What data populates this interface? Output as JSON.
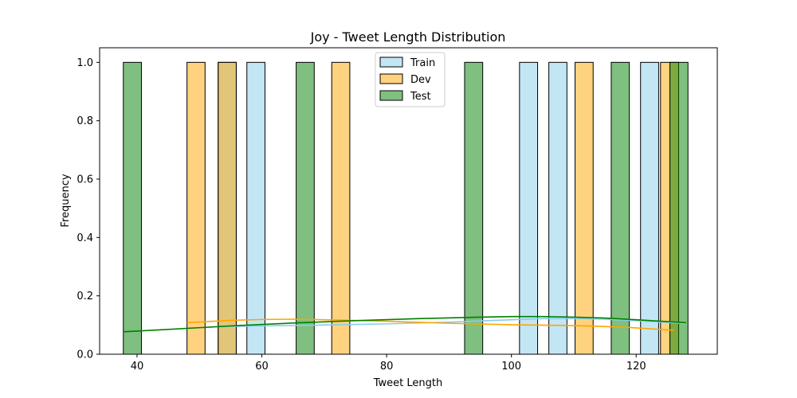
{
  "chart_data": {
    "type": "bar",
    "title": "Joy - Tweet Length Distribution",
    "xlabel": "Tweet Length",
    "ylabel": "Frequency",
    "xlim": [
      34,
      133
    ],
    "ylim": [
      0,
      1.05
    ],
    "xticks": [
      40,
      60,
      80,
      100,
      120
    ],
    "yticks": [
      0.0,
      0.2,
      0.4,
      0.6,
      0.8,
      1.0
    ],
    "ytick_labels": [
      "0.0",
      "0.2",
      "0.4",
      "0.6",
      "0.8",
      "1.0"
    ],
    "grid": false,
    "legend_position": "top-center",
    "bin_width": 2.9,
    "series": [
      {
        "name": "Train",
        "fill": "#87ceeb",
        "edge": "#000000",
        "kde_color": "#87ceeb",
        "bins": [
          53,
          57.6,
          101.3,
          106.0,
          120.7
        ],
        "values": [
          1,
          1,
          1,
          1,
          1
        ],
        "kde": {
          "x": [
            53,
            60,
            70,
            80,
            90,
            100,
            105,
            110,
            115,
            120,
            125,
            128
          ],
          "y": [
            0.095,
            0.097,
            0.1,
            0.104,
            0.11,
            0.118,
            0.122,
            0.122,
            0.12,
            0.115,
            0.109,
            0.105
          ]
        }
      },
      {
        "name": "Dev",
        "fill": "#ffa500",
        "edge": "#000000",
        "kde_color": "#ffa500",
        "bins": [
          48,
          53,
          71.2,
          110.2,
          123.9
        ],
        "values": [
          1,
          1,
          1,
          1,
          1
        ],
        "kde": {
          "x": [
            48,
            55,
            60,
            65,
            70,
            80,
            90,
            100,
            110,
            118,
            126
          ],
          "y": [
            0.108,
            0.116,
            0.119,
            0.12,
            0.118,
            0.113,
            0.106,
            0.101,
            0.098,
            0.093,
            0.082
          ]
        }
      },
      {
        "name": "Test",
        "fill": "#008000",
        "edge": "#000000",
        "kde_color": "#008000",
        "bins": [
          37.8,
          65.5,
          92.5,
          116.0,
          125.4
        ],
        "values": [
          1,
          1,
          1,
          1,
          1
        ],
        "kde": {
          "x": [
            37.8,
            45,
            55,
            65,
            75,
            85,
            95,
            100,
            105,
            110,
            115,
            120,
            128
          ],
          "y": [
            0.077,
            0.085,
            0.097,
            0.107,
            0.115,
            0.122,
            0.127,
            0.129,
            0.129,
            0.127,
            0.124,
            0.118,
            0.108
          ]
        }
      }
    ]
  }
}
